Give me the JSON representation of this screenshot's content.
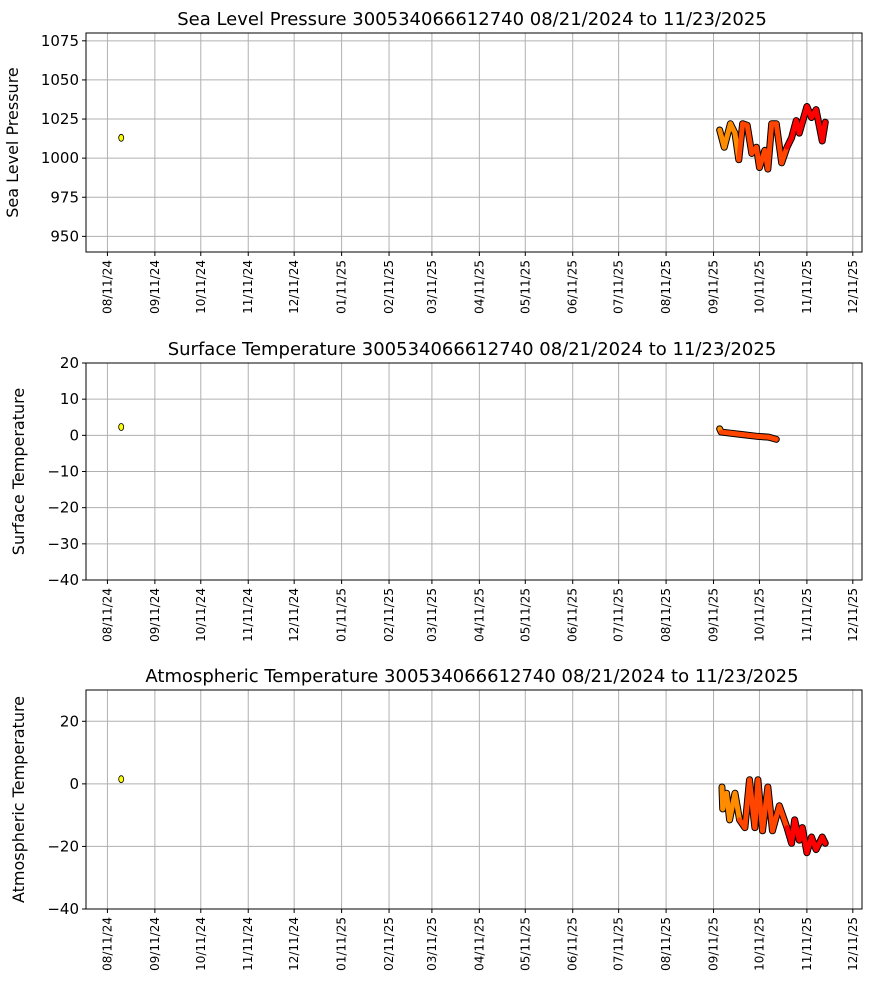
{
  "colors": {
    "orange": "#ff8c00",
    "orangered": "#ff4500",
    "red": "#ff0000",
    "yellow": "#ffff00",
    "grid": "#b0b0b0"
  },
  "chart_data": [
    {
      "type": "line",
      "title": "Sea Level Pressure 300534066612740  08/21/2024 to 11/23/2025",
      "ylabel": "Sea Level Pressure",
      "xlabel": "",
      "x_units": "days since 08/11/24",
      "xlim": [
        -14,
        493
      ],
      "ylim": [
        940,
        1080
      ],
      "yticks": [
        950,
        975,
        1000,
        1025,
        1050,
        1075
      ],
      "grid": true,
      "isolated_point": [
        9,
        1013
      ],
      "points": [
        [
          400,
          1018,
          "orange"
        ],
        [
          403,
          1007,
          "orange"
        ],
        [
          407,
          1022,
          "orange"
        ],
        [
          410,
          1016,
          "orange"
        ],
        [
          412.5,
          999,
          "orange"
        ],
        [
          415,
          1022,
          "orangered"
        ],
        [
          418,
          1021,
          "orangered"
        ],
        [
          421,
          1003,
          "orangered"
        ],
        [
          424,
          1007,
          "orangered"
        ],
        [
          426,
          994,
          "orangered"
        ],
        [
          429.5,
          1005,
          "orangered"
        ],
        [
          431.5,
          993,
          "orangered"
        ],
        [
          434,
          1022,
          "orangered"
        ],
        [
          437,
          1022,
          "orangered"
        ],
        [
          440.5,
          997,
          "orangered"
        ],
        [
          444,
          1007,
          "orangered"
        ],
        [
          447,
          1013,
          "red"
        ],
        [
          450,
          1024,
          "red"
        ],
        [
          452,
          1016,
          "red"
        ],
        [
          457,
          1033,
          "red"
        ],
        [
          460,
          1026,
          "red"
        ],
        [
          463,
          1031,
          "red"
        ],
        [
          467,
          1011,
          "red"
        ],
        [
          469,
          1023,
          "red"
        ]
      ]
    },
    {
      "type": "line",
      "title": "Surface Temperature 300534066612740  08/21/2024 to 11/23/2025",
      "ylabel": "Surface Temperature",
      "xlabel": "",
      "x_units": "days since 08/11/24",
      "xlim": [
        -14,
        493
      ],
      "ylim": [
        -40,
        20
      ],
      "yticks": [
        -40,
        -30,
        -20,
        -10,
        0,
        10,
        20
      ],
      "grid": true,
      "isolated_point": [
        9,
        2.3
      ],
      "points": [
        [
          400,
          1.8,
          "orange"
        ],
        [
          401,
          0.9,
          "orange"
        ],
        [
          407,
          0.6,
          "orangered"
        ],
        [
          415,
          0.2,
          "orangered"
        ],
        [
          425,
          -0.3,
          "orangered"
        ],
        [
          432,
          -0.5,
          "orangered"
        ],
        [
          437,
          -1.1,
          "orangered"
        ]
      ]
    },
    {
      "type": "line",
      "title": "Atmospheric Temperature 300534066612740  08/21/2024 to 11/23/2025",
      "ylabel": "Atmospheric Temperature",
      "xlabel": "",
      "x_units": "days since 08/11/24",
      "xlim": [
        -14,
        493
      ],
      "ylim": [
        -40,
        30
      ],
      "yticks": [
        -40,
        -20,
        0,
        20
      ],
      "grid": true,
      "isolated_point": [
        9,
        1.5
      ],
      "points": [
        [
          401.5,
          -1,
          "orange"
        ],
        [
          402,
          -8,
          "orange"
        ],
        [
          404.5,
          -3,
          "orange"
        ],
        [
          406.5,
          -11.5,
          "orange"
        ],
        [
          410,
          -3,
          "orange"
        ],
        [
          413,
          -11.5,
          "orange"
        ],
        [
          416.5,
          -14,
          "orangered"
        ],
        [
          419.5,
          1.3,
          "orangered"
        ],
        [
          423,
          -14,
          "orangered"
        ],
        [
          425,
          1.3,
          "orangered"
        ],
        [
          428,
          -15,
          "orangered"
        ],
        [
          431.5,
          -1,
          "orangered"
        ],
        [
          434.5,
          -15,
          "orangered"
        ],
        [
          439,
          -7,
          "orangered"
        ],
        [
          444,
          -14,
          "orangered"
        ],
        [
          447,
          -19,
          "red"
        ],
        [
          449,
          -11.5,
          "red"
        ],
        [
          452,
          -18,
          "red"
        ],
        [
          454,
          -14,
          "red"
        ],
        [
          457,
          -22,
          "red"
        ],
        [
          460,
          -17,
          "red"
        ],
        [
          463,
          -21,
          "red"
        ],
        [
          467,
          -17,
          "red"
        ],
        [
          469,
          -19,
          "red"
        ]
      ]
    }
  ],
  "xticks": [
    {
      "day": 0,
      "label": "08/11/24"
    },
    {
      "day": 31,
      "label": "09/11/24"
    },
    {
      "day": 61,
      "label": "10/11/24"
    },
    {
      "day": 92,
      "label": "11/11/24"
    },
    {
      "day": 122,
      "label": "12/11/24"
    },
    {
      "day": 153,
      "label": "01/11/25"
    },
    {
      "day": 184,
      "label": "02/11/25"
    },
    {
      "day": 212,
      "label": "03/11/25"
    },
    {
      "day": 243,
      "label": "04/11/25"
    },
    {
      "day": 273,
      "label": "05/11/25"
    },
    {
      "day": 304,
      "label": "06/11/25"
    },
    {
      "day": 334,
      "label": "07/11/25"
    },
    {
      "day": 365,
      "label": "08/11/25"
    },
    {
      "day": 396,
      "label": "09/11/25"
    },
    {
      "day": 426,
      "label": "10/11/25"
    },
    {
      "day": 457,
      "label": "11/11/25"
    },
    {
      "day": 487,
      "label": "12/11/25"
    }
  ]
}
